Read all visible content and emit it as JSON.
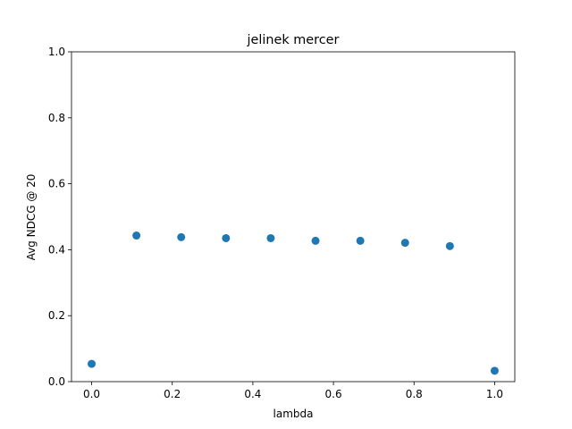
{
  "chart_data": {
    "type": "scatter",
    "title": "jelinek mercer",
    "xlabel": "lambda",
    "ylabel": "Avg NDCG @ 20",
    "xlim": [
      -0.05,
      1.05
    ],
    "ylim": [
      0.0,
      1.0
    ],
    "xticks": [
      "0.0",
      "0.2",
      "0.4",
      "0.6",
      "0.8",
      "1.0"
    ],
    "yticks": [
      "0.0",
      "0.2",
      "0.4",
      "0.6",
      "0.8",
      "1.0"
    ],
    "grid": false,
    "marker_color": "#1f77b4",
    "x": [
      0.0,
      0.1111,
      0.2222,
      0.3333,
      0.4444,
      0.5556,
      0.6667,
      0.7778,
      0.8889,
      1.0
    ],
    "y": [
      0.054,
      0.443,
      0.438,
      0.435,
      0.435,
      0.427,
      0.427,
      0.421,
      0.411,
      0.033
    ]
  }
}
